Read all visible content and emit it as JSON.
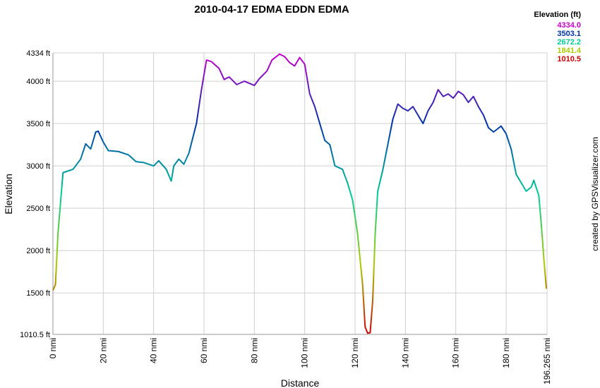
{
  "chart_data": {
    "type": "line",
    "title": "2010-04-17 EDMA EDDN EDMA",
    "x_label": "Distance",
    "y_label": "Elevation",
    "credit": "created by GPSVisualizer.com",
    "x": [
      0,
      1,
      2,
      4,
      8,
      11,
      13,
      15,
      17,
      18,
      20,
      22,
      26,
      30,
      33,
      36,
      40,
      42,
      45,
      47,
      48,
      50,
      52,
      54,
      57,
      59,
      61,
      63,
      66,
      68,
      70,
      73,
      76,
      80,
      82,
      85,
      87,
      90,
      92,
      94,
      96,
      98,
      100,
      102,
      104,
      106,
      108,
      110,
      112,
      115,
      117,
      119,
      121,
      123,
      124,
      125,
      126,
      127,
      128,
      129,
      131,
      133,
      135,
      137,
      139,
      141,
      143,
      145,
      147,
      149,
      151,
      153,
      155,
      157,
      159,
      161,
      163,
      165,
      167,
      169,
      171,
      173,
      175,
      178,
      180,
      182,
      184,
      186,
      188,
      190,
      191,
      193,
      194,
      195,
      196
    ],
    "values": [
      1530,
      1600,
      2200,
      2920,
      2960,
      3080,
      3260,
      3200,
      3400,
      3410,
      3280,
      3180,
      3170,
      3130,
      3050,
      3040,
      3000,
      3060,
      2960,
      2820,
      3000,
      3080,
      3020,
      3150,
      3500,
      3900,
      4250,
      4230,
      4150,
      4020,
      4050,
      3960,
      4000,
      3950,
      4030,
      4120,
      4250,
      4320,
      4290,
      4220,
      4180,
      4280,
      4200,
      3850,
      3700,
      3500,
      3300,
      3250,
      3000,
      2960,
      2800,
      2600,
      2200,
      1600,
      1100,
      1025,
      1030,
      1400,
      2200,
      2700,
      2950,
      3250,
      3550,
      3730,
      3680,
      3650,
      3700,
      3600,
      3500,
      3650,
      3750,
      3900,
      3820,
      3850,
      3800,
      3880,
      3840,
      3750,
      3820,
      3700,
      3600,
      3450,
      3400,
      3470,
      3380,
      3200,
      2900,
      2800,
      2700,
      2750,
      2830,
      2650,
      2300,
      1900,
      1550
    ],
    "xlim": [
      0,
      196.265
    ],
    "ylim": [
      1010.5,
      4334
    ],
    "xticks": [
      {
        "value": 0,
        "label": "0 nmi"
      },
      {
        "value": 20,
        "label": "20 nmi"
      },
      {
        "value": 40,
        "label": "40 nmi"
      },
      {
        "value": 60,
        "label": "60 nmi"
      },
      {
        "value": 80,
        "label": "80 nmi"
      },
      {
        "value": 100,
        "label": "100 nmi"
      },
      {
        "value": 120,
        "label": "120 nmi"
      },
      {
        "value": 140,
        "label": "140 nmi"
      },
      {
        "value": 160,
        "label": "160 nmi"
      },
      {
        "value": 180,
        "label": "180 nmi"
      },
      {
        "value": 196.265,
        "label": "196.265 nmi"
      }
    ],
    "yticks": [
      {
        "value": 1010.5,
        "label": "1010.5 ft"
      },
      {
        "value": 1500,
        "label": "1500 ft"
      },
      {
        "value": 2000,
        "label": "2000 ft"
      },
      {
        "value": 2500,
        "label": "2500 ft"
      },
      {
        "value": 3000,
        "label": "3000 ft"
      },
      {
        "value": 3500,
        "label": "3500 ft"
      },
      {
        "value": 4000,
        "label": "4000 ft"
      },
      {
        "value": 4334,
        "label": "4334 ft"
      }
    ],
    "grid": true,
    "legend": {
      "title": "Elevation (ft)",
      "items": [
        {
          "value": 4334,
          "label": "4334.0",
          "color": "#cc00cc"
        },
        {
          "value": 3503.1,
          "label": "3503.1",
          "color": "#0033aa"
        },
        {
          "value": 2672.2,
          "label": "2672.2",
          "color": "#00cc99"
        },
        {
          "value": 1841.4,
          "label": "1841.4",
          "color": "#aacc00"
        },
        {
          "value": 1010.5,
          "label": "1010.5",
          "color": "#cc0000"
        }
      ]
    }
  }
}
